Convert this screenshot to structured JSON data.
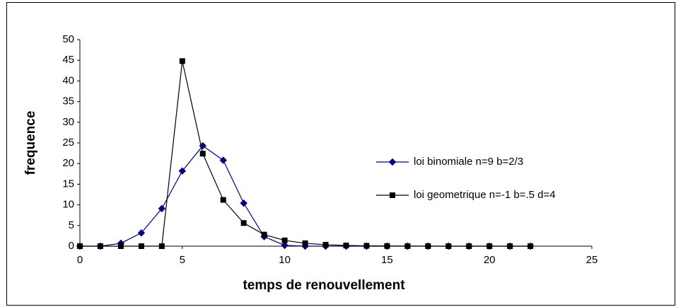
{
  "chart_data": {
    "type": "line",
    "x_label": "temps de renouvellement",
    "y_label": "frequence",
    "x": [
      0,
      1,
      2,
      3,
      4,
      5,
      6,
      7,
      8,
      9,
      10,
      11,
      12,
      13,
      14,
      15,
      16,
      17,
      18,
      19,
      20,
      21,
      22
    ],
    "series": [
      {
        "name": "loi binomiale n=9 b=2/3",
        "color": "#000080",
        "marker": "diamond",
        "values": [
          0,
          0,
          0.7,
          3.2,
          9.1,
          18.2,
          24.3,
          20.8,
          10.4,
          2.3,
          0.2,
          0,
          0,
          0,
          0,
          0,
          0,
          0,
          0,
          0,
          0,
          0,
          0
        ]
      },
      {
        "name": "loi geometrique n=-1 b=.5 d=4",
        "color": "#000000",
        "marker": "square",
        "values": [
          0,
          0,
          0,
          0,
          0,
          44.8,
          22.4,
          11.2,
          5.6,
          2.8,
          1.4,
          0.7,
          0.35,
          0.17,
          0.09,
          0.04,
          0.02,
          0.01,
          0,
          0,
          0,
          0,
          0
        ]
      }
    ],
    "xlim": [
      0,
      25
    ],
    "xticks": [
      0,
      5,
      10,
      15,
      20,
      25
    ],
    "ylim": [
      0,
      50
    ],
    "yticks": [
      0,
      5,
      10,
      15,
      20,
      25,
      30,
      35,
      40,
      45,
      50
    ],
    "grid": false,
    "legend": "right"
  }
}
